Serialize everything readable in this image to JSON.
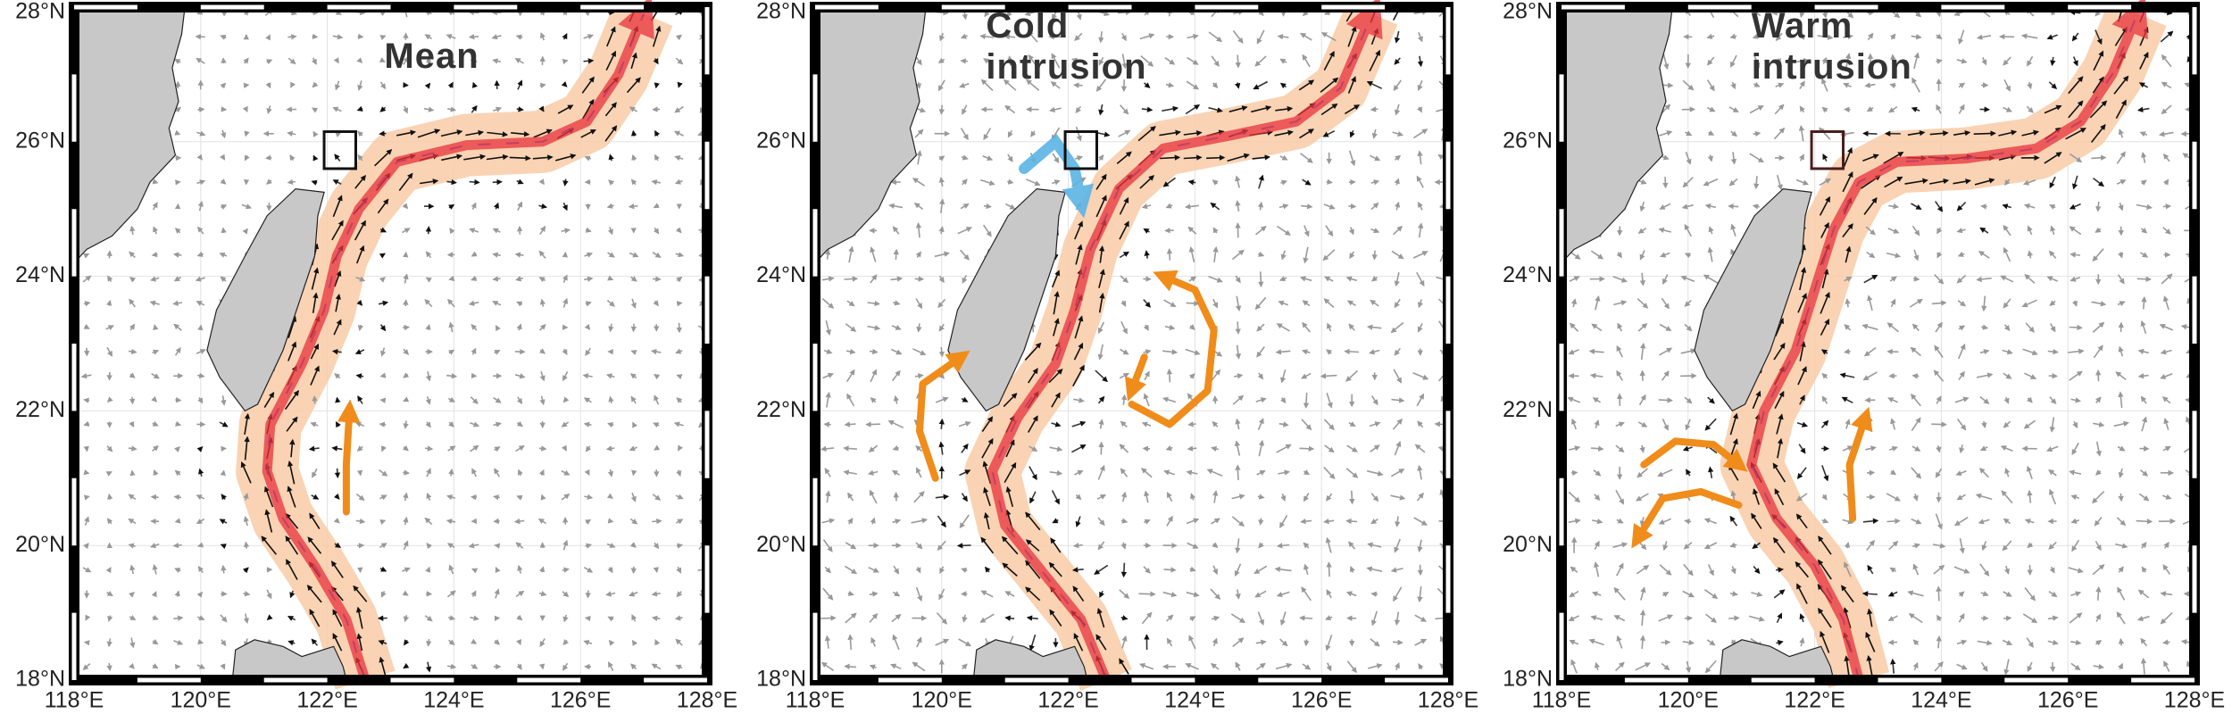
{
  "map": {
    "x_labels": [
      "118°E",
      "120°E",
      "122°E",
      "124°E",
      "126°E",
      "128°E"
    ],
    "y_labels": [
      "18°N",
      "20°N",
      "22°N",
      "24°N",
      "26°N",
      "28°N"
    ]
  },
  "panels": [
    {
      "title_lines": [
        "Mean"
      ]
    },
    {
      "title_lines": [
        "Cold",
        "intrusion"
      ]
    },
    {
      "title_lines": [
        "Warm",
        "intrusion"
      ]
    }
  ]
}
